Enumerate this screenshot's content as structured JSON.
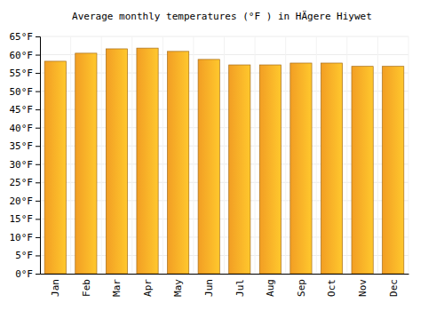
{
  "chart_data": {
    "type": "bar",
    "title": "Average monthly temperatures (°F ) in HÄgere Hiywet",
    "categories": [
      "Jan",
      "Feb",
      "Mar",
      "Apr",
      "May",
      "Jun",
      "Jul",
      "Aug",
      "Sep",
      "Oct",
      "Nov",
      "Dec"
    ],
    "values": [
      58.2,
      60.4,
      61.6,
      61.8,
      60.9,
      58.7,
      57.2,
      57.2,
      57.7,
      57.7,
      56.8,
      56.8
    ],
    "color": "#ffa726",
    "ylim": [
      0,
      65
    ],
    "yticks": [
      {
        "value": 0,
        "label": "0°F"
      },
      {
        "value": 5,
        "label": "5°F"
      },
      {
        "value": 10,
        "label": "10°F"
      },
      {
        "value": 15,
        "label": "15°F"
      },
      {
        "value": 20,
        "label": "20°F"
      },
      {
        "value": 25,
        "label": "25°F"
      },
      {
        "value": 30,
        "label": "30°F"
      },
      {
        "value": 35,
        "label": "35°F"
      },
      {
        "value": 40,
        "label": "40°F"
      },
      {
        "value": 45,
        "label": "45°F"
      },
      {
        "value": 50,
        "label": "50°F"
      },
      {
        "value": 55,
        "label": "55°F"
      },
      {
        "value": 60,
        "label": "60°F"
      },
      {
        "value": 65,
        "label": "65°F"
      }
    ],
    "grid": true
  }
}
